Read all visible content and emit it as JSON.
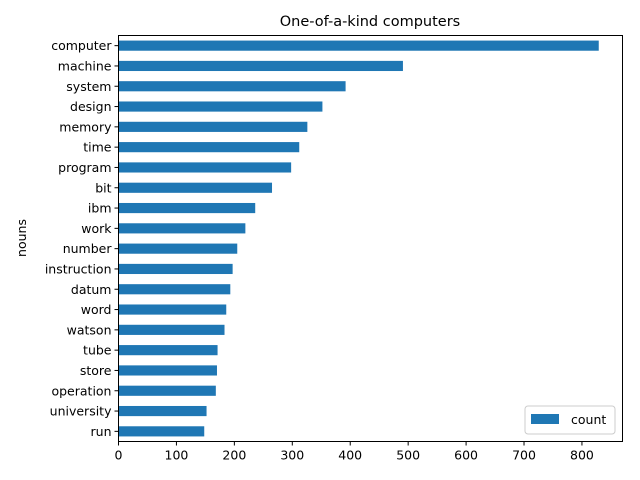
{
  "chart_data": {
    "type": "bar",
    "orientation": "horizontal",
    "title": "One-of-a-kind computers",
    "xlabel": "",
    "ylabel": "nouns",
    "xlim": [
      0,
      870
    ],
    "xticks": [
      0,
      100,
      200,
      300,
      400,
      500,
      600,
      700,
      800
    ],
    "grid": false,
    "legend_placement": "lower-right",
    "categories": [
      "computer",
      "machine",
      "system",
      "design",
      "memory",
      "time",
      "program",
      "bit",
      "ibm",
      "work",
      "number",
      "instruction",
      "datum",
      "word",
      "watson",
      "tube",
      "store",
      "operation",
      "university",
      "run"
    ],
    "series": [
      {
        "name": "count",
        "color": "#1f77b4",
        "values": [
          829,
          491,
          392,
          352,
          326,
          312,
          298,
          265,
          236,
          219,
          205,
          197,
          193,
          186,
          183,
          171,
          170,
          168,
          152,
          148
        ]
      }
    ]
  }
}
